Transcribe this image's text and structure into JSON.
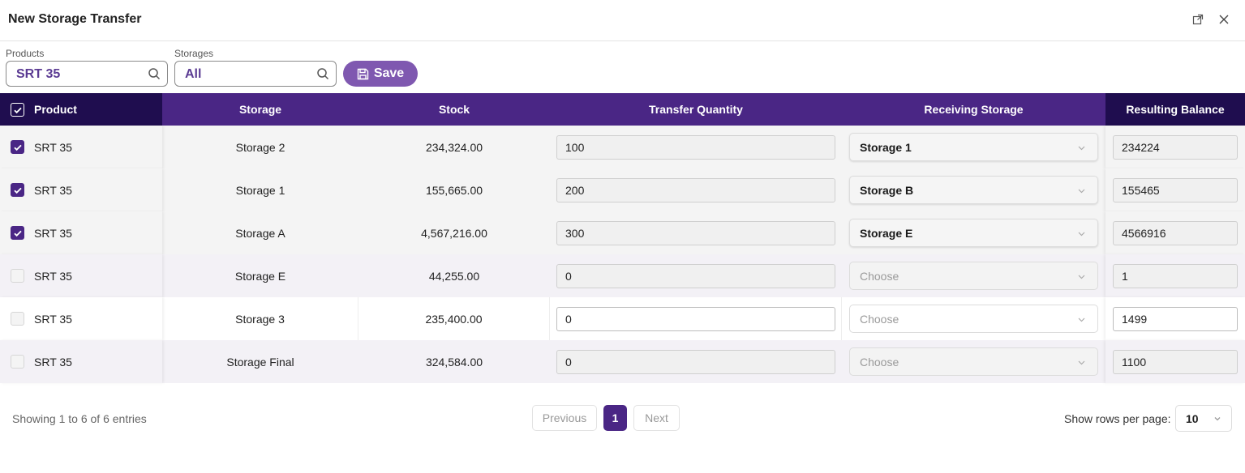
{
  "window": {
    "title": "New Storage Transfer"
  },
  "filters": {
    "products_label": "Products",
    "products_value": "SRT 35",
    "storages_label": "Storages",
    "storages_value": "All",
    "save_label": "Save"
  },
  "table": {
    "columns": [
      "Product",
      "Storage",
      "Stock",
      "Transfer Quantity",
      "Receiving Storage",
      "Resulting Balance"
    ],
    "rows": [
      {
        "checked": true,
        "product": "SRT 35",
        "storage": "Storage 2",
        "stock": "234,324.00",
        "transfer_qty": "100",
        "receiving": "Storage 1",
        "balance": "234224"
      },
      {
        "checked": true,
        "product": "SRT 35",
        "storage": "Storage 1",
        "stock": "155,665.00",
        "transfer_qty": "200",
        "receiving": "Storage B",
        "balance": "155465"
      },
      {
        "checked": true,
        "product": "SRT 35",
        "storage": "Storage A",
        "stock": "4,567,216.00",
        "transfer_qty": "300",
        "receiving": "Storage E",
        "balance": "4566916"
      },
      {
        "checked": false,
        "product": "SRT 35",
        "storage": "Storage E",
        "stock": "44,255.00",
        "transfer_qty": "0",
        "receiving": "Choose",
        "balance": "1"
      },
      {
        "checked": false,
        "product": "SRT 35",
        "storage": "Storage 3",
        "stock": "235,400.00",
        "transfer_qty": "0",
        "receiving": "Choose",
        "balance": "1499"
      },
      {
        "checked": false,
        "product": "SRT 35",
        "storage": "Storage Final",
        "stock": "324,584.00",
        "transfer_qty": "0",
        "receiving": "Choose",
        "balance": "1100"
      }
    ]
  },
  "footer": {
    "entries_text": "Showing 1 to 6 of 6 entries",
    "previous_label": "Previous",
    "current_page": "1",
    "next_label": "Next",
    "rows_per_page_label": "Show rows per page:",
    "rows_per_page_value": "10"
  },
  "colors": {
    "accent": "#4a2685",
    "accent_dark": "#1f0d4f",
    "save_button": "#7f58b0"
  }
}
